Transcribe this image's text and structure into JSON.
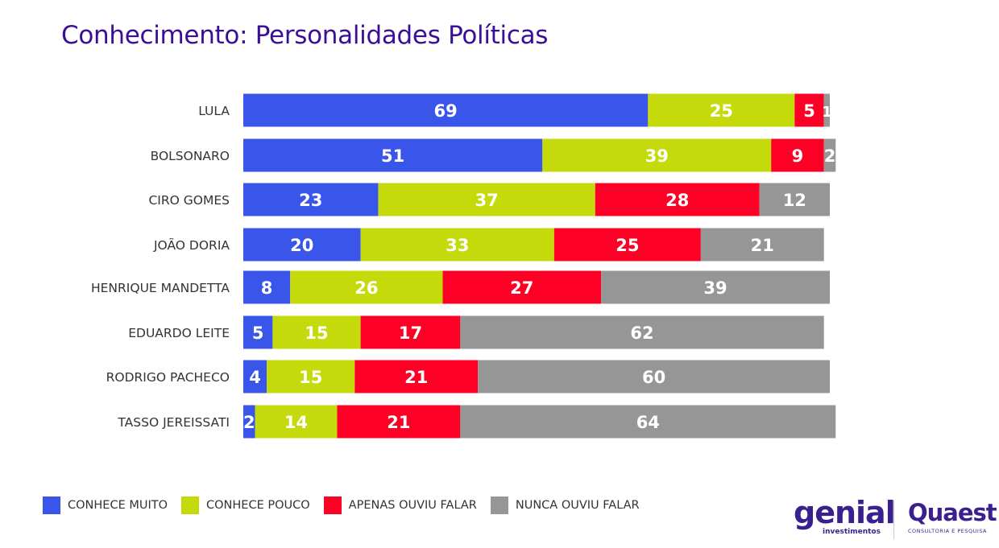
{
  "title": "Conhecimento: Personalidades Políticas",
  "chart_data": {
    "type": "bar",
    "orientation": "horizontal",
    "stacked": true,
    "title": "Conhecimento: Personalidades Políticas",
    "xlabel": "",
    "ylabel": "",
    "xlim": [
      0,
      100
    ],
    "grid": false,
    "legend_position": "bottom-left",
    "categories": [
      "LULA",
      "BOLSONARO",
      "CIRO GOMES",
      "JOÃO DORIA",
      "HENRIQUE MANDETTA",
      "EDUARDO LEITE",
      "RODRIGO PACHECO",
      "TASSO JEREISSATI"
    ],
    "series": [
      {
        "name": "CONHECE MUITO",
        "color": "#3a55ea",
        "values": [
          69,
          51,
          23,
          20,
          8,
          5,
          4,
          2
        ]
      },
      {
        "name": "CONHECE POUCO",
        "color": "#c4da0b",
        "values": [
          25,
          39,
          37,
          33,
          26,
          15,
          15,
          14
        ]
      },
      {
        "name": "APENAS OUVIU FALAR",
        "color": "#fd0025",
        "values": [
          5,
          9,
          28,
          25,
          27,
          17,
          21,
          21
        ]
      },
      {
        "name": "NUNCA OUVIU FALAR",
        "color": "#969696",
        "values": [
          1,
          2,
          12,
          21,
          39,
          62,
          60,
          64
        ]
      }
    ]
  },
  "logos": {
    "genial": "genial",
    "genial_sub": "investimentos",
    "quaest": "Quaest",
    "quaest_sub": "CONSULTORIA E PESQUISA"
  }
}
